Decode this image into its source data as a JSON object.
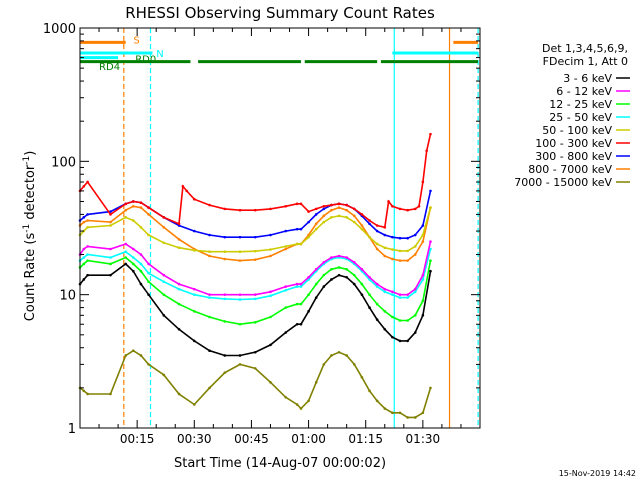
{
  "chart_data": {
    "type": "line",
    "title": "RHESSI Observing Summary Count Rates",
    "xlabel": "Start Time (14-Aug-07 00:00:02)",
    "ylabel": "Count Rate (s",
    "ylabel_sup": "-1",
    "ylabel_rest": " detector",
    "ylabel_sup2": "-1",
    "ylabel_close": ")",
    "yscale": "log",
    "xlim": [
      0,
      105
    ],
    "ylim": [
      1,
      1000
    ],
    "x_ticks": [
      {
        "v": 15,
        "label": "00:15"
      },
      {
        "v": 30,
        "label": "00:30"
      },
      {
        "v": 45,
        "label": "00:45"
      },
      {
        "v": 60,
        "label": "01:00"
      },
      {
        "v": 75,
        "label": "01:15"
      },
      {
        "v": 90,
        "label": "01:30"
      }
    ],
    "y_ticks": [
      {
        "v": 1,
        "label": "1"
      },
      {
        "v": 10,
        "label": "10"
      },
      {
        "v": 100,
        "label": "100"
      },
      {
        "v": 1000,
        "label": "1000"
      }
    ],
    "grid": false,
    "legend_position": "right",
    "legend_header": [
      "Det 1,3,4,5,6,9,",
      "FDecim 1, Att 0"
    ],
    "footer_timestamp": "15-Nov-2019 14:42",
    "series": [
      {
        "name": "3 - 6 keV",
        "color": "#000000",
        "x": [
          0,
          1,
          2,
          8,
          12,
          14,
          16,
          18,
          22,
          26,
          30,
          34,
          38,
          42,
          46,
          50,
          54,
          57,
          58,
          60,
          62,
          64,
          66,
          68,
          70,
          72,
          74,
          76,
          78,
          80,
          82,
          84,
          86,
          88,
          90,
          92
        ],
        "y": [
          12,
          13,
          14,
          14,
          17,
          15,
          12,
          10,
          7,
          5.5,
          4.5,
          3.8,
          3.5,
          3.5,
          3.7,
          4.2,
          5.2,
          6,
          6,
          7.5,
          9.5,
          11.5,
          13,
          14,
          13.5,
          12,
          10,
          8,
          6.5,
          5.5,
          4.8,
          4.5,
          4.5,
          5.2,
          7,
          15
        ]
      },
      {
        "name": "6 - 12 keV",
        "color": "#ff00ff",
        "x": [
          0,
          1,
          2,
          8,
          12,
          14,
          16,
          18,
          22,
          26,
          30,
          34,
          38,
          42,
          46,
          50,
          54,
          57,
          58,
          60,
          62,
          64,
          66,
          68,
          70,
          72,
          74,
          76,
          78,
          80,
          82,
          84,
          86,
          88,
          90,
          92
        ],
        "y": [
          20,
          22,
          23,
          22,
          24,
          22,
          20,
          17,
          14,
          12,
          11,
          10,
          10,
          10,
          10,
          10.5,
          11.5,
          12,
          12,
          13.5,
          15.5,
          17.5,
          19,
          19.5,
          19,
          17.5,
          15.5,
          13.5,
          12,
          11,
          10.5,
          10,
          10,
          11,
          14,
          25
        ]
      },
      {
        "name": "12 - 25 keV",
        "color": "#00ff00",
        "x": [
          0,
          1,
          2,
          8,
          12,
          14,
          16,
          18,
          22,
          26,
          30,
          34,
          38,
          42,
          46,
          50,
          54,
          57,
          58,
          60,
          62,
          64,
          66,
          68,
          70,
          72,
          74,
          76,
          78,
          80,
          82,
          84,
          86,
          88,
          90,
          92
        ],
        "y": [
          16,
          17,
          18,
          17,
          19,
          17,
          15,
          12.5,
          10,
          8.5,
          7.5,
          6.8,
          6.3,
          6,
          6.2,
          6.8,
          8,
          8.5,
          8.5,
          10,
          12,
          14,
          15.5,
          16,
          15.5,
          14,
          12,
          10,
          8.5,
          7.5,
          6.8,
          6.4,
          6.4,
          7,
          9,
          18
        ]
      },
      {
        "name": "25 - 50 keV",
        "color": "#00ffff",
        "x": [
          0,
          1,
          2,
          8,
          12,
          14,
          16,
          18,
          22,
          26,
          30,
          34,
          38,
          42,
          46,
          50,
          54,
          57,
          58,
          60,
          62,
          64,
          66,
          68,
          70,
          72,
          74,
          76,
          78,
          80,
          82,
          84,
          86,
          88,
          90,
          92
        ],
        "y": [
          18,
          19,
          20,
          19,
          21,
          19,
          17,
          14.5,
          12.5,
          11,
          10,
          9.5,
          9.3,
          9.2,
          9.3,
          9.8,
          10.8,
          11.5,
          11.5,
          13,
          15,
          17,
          18.5,
          19,
          18.5,
          17,
          15,
          13,
          11.5,
          10.5,
          10,
          9.5,
          9.5,
          10.5,
          13,
          22
        ]
      },
      {
        "name": "50 - 100 keV",
        "color": "#cccc00",
        "x": [
          0,
          1,
          2,
          8,
          12,
          14,
          16,
          18,
          22,
          26,
          30,
          34,
          38,
          42,
          46,
          50,
          54,
          57,
          58,
          60,
          62,
          64,
          66,
          68,
          70,
          72,
          74,
          76,
          78,
          80,
          82,
          84,
          86,
          88,
          90,
          92
        ],
        "y": [
          28,
          30,
          32,
          33,
          38,
          36,
          32,
          28,
          24.5,
          22.5,
          21.5,
          21,
          21,
          21,
          21.2,
          21.8,
          23,
          24,
          24,
          27,
          31,
          35,
          38,
          39,
          38,
          35,
          31,
          27,
          24,
          22.5,
          21.8,
          21.3,
          21.3,
          23,
          28,
          45
        ]
      },
      {
        "name": "100 - 300 keV",
        "color": "#ff0000",
        "x": [
          0,
          1,
          2,
          8,
          12,
          14,
          16,
          18,
          22,
          26,
          27,
          28,
          30,
          34,
          38,
          42,
          46,
          50,
          54,
          57,
          58,
          60,
          62,
          64,
          66,
          68,
          70,
          72,
          74,
          76,
          78,
          80,
          81,
          82,
          84,
          86,
          88,
          89,
          90,
          91,
          92
        ],
        "y": [
          60,
          65,
          70,
          40,
          48,
          50,
          49,
          45,
          38,
          34,
          65,
          60,
          52,
          47,
          44,
          43,
          43,
          44,
          46,
          48,
          48,
          42,
          44,
          46,
          47,
          48,
          47,
          44,
          40,
          36,
          33,
          32,
          50,
          46,
          44,
          43,
          44,
          46,
          70,
          120,
          160
        ]
      },
      {
        "name": "300 - 800 keV",
        "color": "#0000ff",
        "x": [
          0,
          1,
          2,
          8,
          12,
          14,
          16,
          18,
          22,
          26,
          30,
          34,
          38,
          42,
          46,
          50,
          54,
          57,
          58,
          60,
          62,
          64,
          66,
          68,
          70,
          72,
          74,
          76,
          78,
          80,
          82,
          84,
          86,
          88,
          90,
          92
        ],
        "y": [
          36,
          38,
          40,
          42,
          48,
          50,
          49,
          45,
          38,
          33,
          30,
          28,
          27,
          27,
          27,
          28,
          30,
          31,
          31,
          35,
          40,
          44,
          47,
          48,
          47,
          44,
          39,
          34,
          30,
          28,
          27,
          26.5,
          26.5,
          28,
          33,
          60
        ]
      },
      {
        "name": "800 - 7000 keV",
        "color": "#ff8000",
        "x": [
          0,
          1,
          2,
          8,
          12,
          14,
          16,
          18,
          22,
          26,
          30,
          34,
          38,
          42,
          46,
          50,
          54,
          57,
          58,
          60,
          62,
          64,
          66,
          68,
          70,
          72,
          74,
          76,
          78,
          80,
          82,
          84,
          86,
          88,
          90,
          92
        ],
        "y": [
          33,
          35,
          36,
          35,
          43,
          46,
          45,
          40,
          32,
          26,
          22,
          19.5,
          18.5,
          18,
          18.3,
          19.5,
          22,
          24,
          24,
          28,
          34,
          39,
          43,
          45,
          43,
          39,
          33,
          27,
          22,
          19.5,
          18.5,
          18,
          18,
          20,
          25,
          45
        ]
      },
      {
        "name": "7000 - 15000 keV",
        "color": "#808000",
        "x": [
          0,
          1,
          2,
          8,
          12,
          14,
          16,
          18,
          22,
          26,
          30,
          34,
          38,
          42,
          46,
          50,
          54,
          57,
          58,
          60,
          62,
          64,
          66,
          68,
          70,
          72,
          74,
          76,
          78,
          80,
          82,
          84,
          86,
          88,
          90,
          92
        ],
        "y": [
          2,
          1.9,
          1.8,
          1.8,
          3.5,
          3.8,
          3.5,
          3,
          2.5,
          1.8,
          1.5,
          2,
          2.6,
          3,
          2.8,
          2.2,
          1.7,
          1.5,
          1.4,
          1.6,
          2.2,
          3,
          3.5,
          3.7,
          3.5,
          3,
          2.4,
          1.9,
          1.6,
          1.4,
          1.3,
          1.3,
          1.2,
          1.2,
          1.3,
          2
        ]
      }
    ],
    "segments": [
      {
        "name": "S",
        "color": "#ff8000",
        "y": 780,
        "ranges": [
          [
            0,
            12
          ],
          [
            98,
            104.5
          ]
        ]
      },
      {
        "name": "N",
        "color": "#00ffff",
        "y": 650,
        "ranges": [
          [
            0,
            19
          ],
          [
            82,
            104.5
          ]
        ]
      },
      {
        "name": "RD0",
        "color": "#00ffff",
        "y": 600,
        "ranges": [
          [
            0,
            10
          ]
        ]
      },
      {
        "name": "",
        "color": "#008000",
        "y": 560,
        "ranges": [
          [
            0,
            29
          ],
          [
            31,
            58
          ],
          [
            59,
            78
          ],
          [
            79,
            104.5
          ]
        ]
      }
    ],
    "vlines": [
      {
        "x": 11.5,
        "color": "#ff8000",
        "dash": true
      },
      {
        "x": 18.5,
        "color": "#00ffff",
        "dash": true
      },
      {
        "x": 82.5,
        "color": "#00ffff",
        "dash": false
      },
      {
        "x": 97,
        "color": "#ff8000",
        "dash": false
      },
      {
        "x": 104.5,
        "color": "#00ffff",
        "dash": true
      }
    ],
    "annotations": [
      {
        "text": "S",
        "x": 14,
        "y": 820,
        "color": "#ff8000"
      },
      {
        "text": "N",
        "x": 20,
        "y": 650,
        "color": "#00ffff"
      },
      {
        "text": "RD0",
        "x": 14.5,
        "y": 590,
        "color": "#008000"
      },
      {
        "text": "RD4",
        "x": 5,
        "y": 520,
        "color": "#008000"
      }
    ]
  }
}
